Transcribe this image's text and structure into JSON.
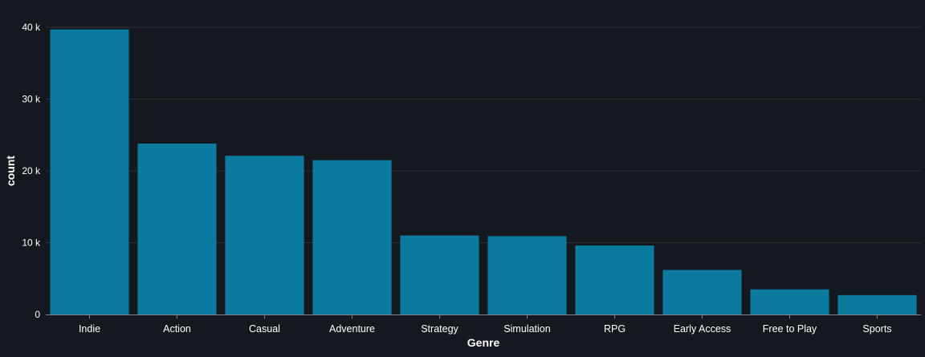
{
  "colors": {
    "background": "#14181f",
    "bar": "#0a7b9f",
    "grid": "#2f3438",
    "axis": "#7d8288",
    "text": "#ffffff"
  },
  "chart_data": {
    "type": "bar",
    "xlabel": "Genre",
    "ylabel": "count",
    "categories": [
      "Indie",
      "Action",
      "Casual",
      "Adventure",
      "Strategy",
      "Simulation",
      "RPG",
      "Early Access",
      "Free to Play",
      "Sports"
    ],
    "values": [
      39700,
      23800,
      22100,
      21500,
      11000,
      10900,
      9600,
      6200,
      3500,
      2700
    ],
    "ylim": [
      0,
      40000
    ],
    "yticks": [
      0,
      10000,
      20000,
      30000,
      40000
    ],
    "ytick_labels": [
      "0",
      "10 k",
      "20 k",
      "30 k",
      "40 k"
    ],
    "grid": true
  }
}
